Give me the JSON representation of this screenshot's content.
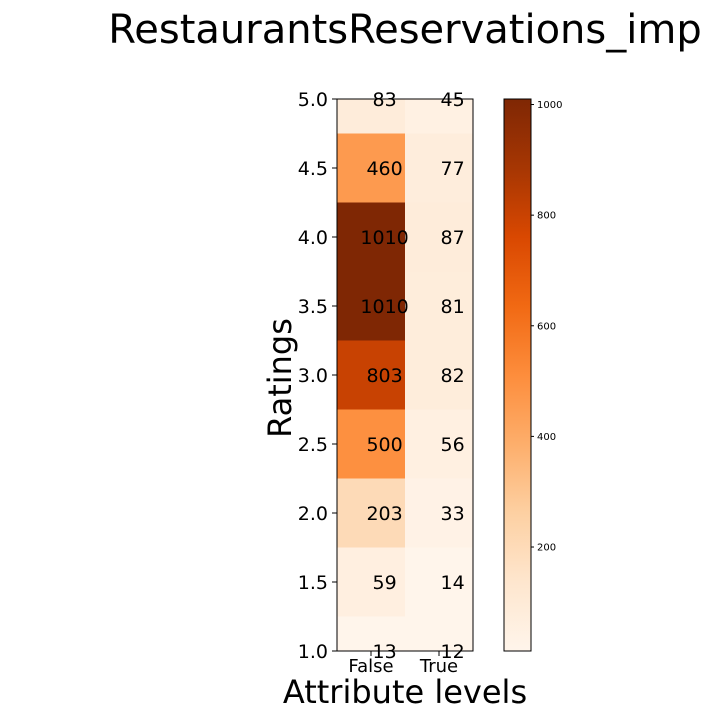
{
  "chart_data": {
    "type": "heatmap",
    "title": "RestaurantsReservations_imp",
    "xlabel": "Attribute levels",
    "ylabel": "Ratings",
    "x_categories": [
      "False",
      "True"
    ],
    "y_categories": [
      1.0,
      1.5,
      2.0,
      2.5,
      3.0,
      3.5,
      4.0,
      4.5,
      5.0
    ],
    "y_tick_labels": [
      "1.0",
      "1.5",
      "2.0",
      "2.5",
      "3.0",
      "3.5",
      "4.0",
      "4.5",
      "5.0"
    ],
    "ylim": [
      1.0,
      5.0
    ],
    "values": [
      [
        13,
        12
      ],
      [
        59,
        14
      ],
      [
        203,
        33
      ],
      [
        500,
        56
      ],
      [
        803,
        82
      ],
      [
        1010,
        81
      ],
      [
        1010,
        87
      ],
      [
        460,
        77
      ],
      [
        83,
        45
      ]
    ],
    "colormap": "Oranges",
    "color_range": [
      12,
      1010
    ],
    "colorbar_ticks": [
      200,
      400,
      600,
      800,
      1000
    ],
    "colorbar_tick_labels": [
      "200",
      "400",
      "600",
      "800",
      "1000"
    ],
    "grid": false,
    "colorbar_position": "right"
  }
}
